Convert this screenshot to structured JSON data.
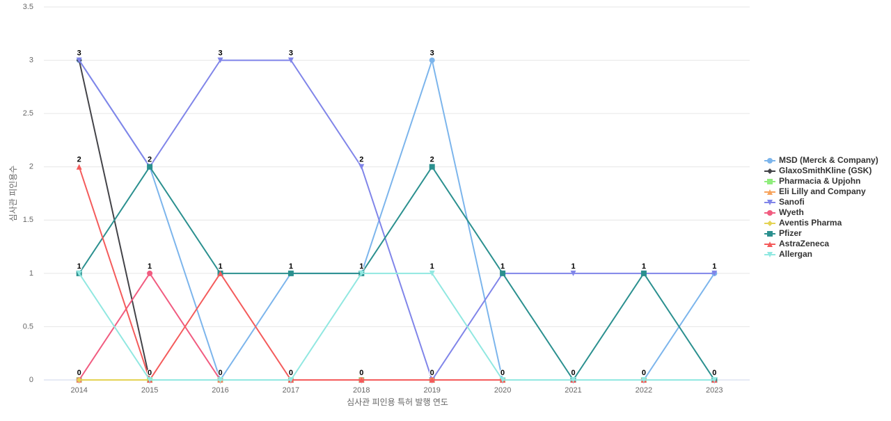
{
  "chart_data": {
    "type": "line",
    "x_label": "심사관 피인용 특허 발행 연도",
    "y_label": "심사관 피인용수",
    "categories": [
      "2014",
      "2015",
      "2016",
      "2017",
      "2018",
      "2019",
      "2020",
      "2021",
      "2022",
      "2023"
    ],
    "ylim": [
      0,
      3.5
    ],
    "yticks": [
      0,
      0.5,
      1,
      1.5,
      2,
      2.5,
      3,
      3.5
    ],
    "grid": true,
    "legend": "right",
    "series": [
      {
        "name": "MSD (Merck & Company)",
        "color": "#7cb5ec",
        "marker": "circle",
        "values": [
          3,
          2,
          0,
          1,
          1,
          3,
          0,
          0,
          0,
          1
        ]
      },
      {
        "name": "GlaxoSmithKline (GSK)",
        "color": "#434348",
        "marker": "diamond",
        "values": [
          3,
          0,
          0,
          0,
          0,
          0,
          0,
          0,
          0,
          0
        ]
      },
      {
        "name": "Pharmacia & Upjohn",
        "color": "#90ed7d",
        "marker": "square",
        "values": [
          0,
          0,
          0,
          0,
          0,
          0,
          0,
          0,
          0,
          0
        ]
      },
      {
        "name": "Eli Lilly and Company",
        "color": "#f7a35c",
        "marker": "triangle",
        "values": [
          0,
          0,
          0,
          0,
          0,
          0,
          0,
          0,
          0,
          0
        ]
      },
      {
        "name": "Sanofi",
        "color": "#8085e9",
        "marker": "triangle-down",
        "values": [
          3,
          2,
          3,
          3,
          2,
          0,
          1,
          1,
          1,
          1
        ]
      },
      {
        "name": "Wyeth",
        "color": "#f15c80",
        "marker": "circle",
        "values": [
          0,
          1,
          0,
          0,
          0,
          0,
          0,
          0,
          0,
          0
        ]
      },
      {
        "name": "Aventis Pharma",
        "color": "#e4d354",
        "marker": "diamond",
        "values": [
          0,
          0,
          0,
          0,
          0,
          0,
          0,
          0,
          0,
          0
        ]
      },
      {
        "name": "Pfizer",
        "color": "#2b908f",
        "marker": "square",
        "values": [
          1,
          2,
          1,
          1,
          1,
          2,
          1,
          0,
          1,
          0
        ]
      },
      {
        "name": "AstraZeneca",
        "color": "#f45b5b",
        "marker": "triangle",
        "values": [
          2,
          0,
          1,
          0,
          0,
          0,
          0,
          0,
          0,
          0
        ]
      },
      {
        "name": "Allergan",
        "color": "#91e8e1",
        "marker": "triangle-down",
        "values": [
          1,
          0,
          0,
          0,
          1,
          1,
          0,
          0,
          0,
          0
        ]
      }
    ]
  }
}
